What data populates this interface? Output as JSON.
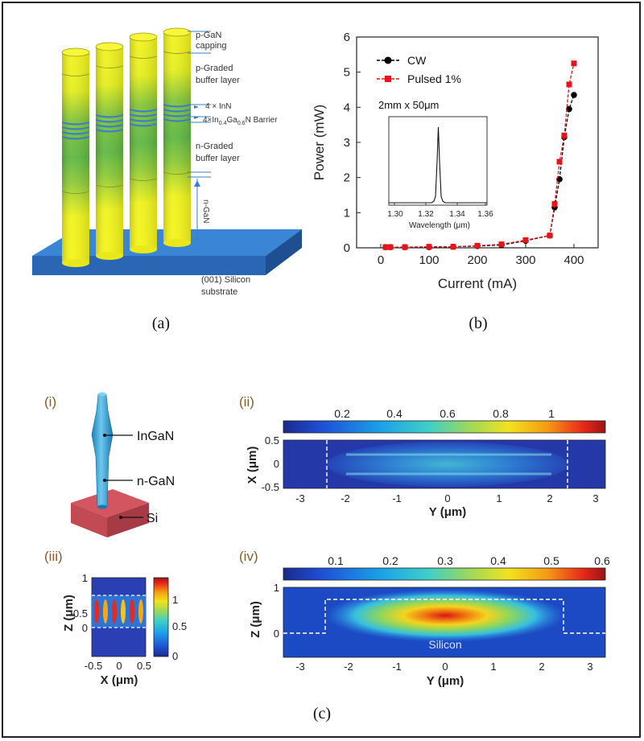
{
  "panel_a": {
    "caption": "(a)",
    "labels": {
      "p_gan_1": "p-GaN",
      "p_gan_2": "capping",
      "p_graded_1": "p-Graded",
      "p_graded_2": "buffer layer",
      "inn": "4 × InN",
      "barrier_pre": "4×In",
      "barrier_sub1": "0.4",
      "barrier_mid": "Ga",
      "barrier_sub2": "0.6",
      "barrier_post": "N Barrier",
      "n_graded_1": "n-Graded",
      "n_graded_2": "buffer layer",
      "n_gan": "n-GaN",
      "substrate_1": "(001) Silicon",
      "substrate_2": "substrate"
    },
    "colors": {
      "rod_yellow": "#f5f51a",
      "rod_green": "#7fc23a",
      "substrate": "#2e74c9",
      "band": "#3a7fc8"
    }
  },
  "panel_b": {
    "caption": "(b)",
    "annotation": "2mm x 50μm",
    "inset_xlabel": "Wavelength (μm)",
    "inset_ticks": [
      "1.30",
      "1.32",
      "1.34",
      "1.36"
    ]
  },
  "panel_c": {
    "caption": "(c)",
    "i": {
      "tag": "(i)",
      "labels": [
        "InGaN",
        "n-GaN",
        "Si"
      ]
    },
    "ii": {
      "tag": "(ii)",
      "colorbar_ticks": [
        "0.2",
        "0.4",
        "0.6",
        "0.8",
        "1"
      ],
      "xlabel": "Y (μm)",
      "ylabel": "X (μm)",
      "y_ticks": [
        "0.5",
        "0",
        "-0.5"
      ],
      "x_ticks": [
        "-3",
        "-2",
        "-1",
        "0",
        "1",
        "2",
        "3"
      ]
    },
    "iii": {
      "tag": "(iii)",
      "xlabel": "X (μm)",
      "ylabel": "Z (μm)",
      "x_ticks": [
        "-0.5",
        "0",
        "0.5"
      ],
      "y_ticks": [
        "1",
        "0.5",
        "0"
      ],
      "colorbar_ticks": [
        "1",
        "0.5",
        "0"
      ]
    },
    "iv": {
      "tag": "(iv)",
      "colorbar_ticks": [
        "0.1",
        "0.2",
        "0.3",
        "0.4",
        "0.5",
        "0.6"
      ],
      "xlabel": "Y (μm)",
      "ylabel": "Z (μm)",
      "y_ticks": [
        "1",
        "0"
      ],
      "x_ticks": [
        "-3",
        "-2",
        "-1",
        "0",
        "1",
        "2",
        "3"
      ],
      "overlay_label": "Silicon"
    }
  },
  "chart_data": {
    "type": "line",
    "xlabel": "Current (mA)",
    "ylabel": "Power (mW)",
    "xlim": [
      -50,
      450
    ],
    "ylim": [
      0,
      6
    ],
    "x_ticks": [
      0,
      100,
      200,
      300,
      400
    ],
    "y_ticks": [
      0,
      1,
      2,
      3,
      4,
      5,
      6
    ],
    "legend_position": "top-left",
    "series": [
      {
        "name": "CW",
        "color": "#000000",
        "marker": "circle",
        "x": [
          10,
          20,
          50,
          100,
          150,
          200,
          250,
          300,
          350,
          360,
          370,
          380,
          390,
          400
        ],
        "y": [
          0.02,
          0.02,
          0.02,
          0.02,
          0.03,
          0.05,
          0.08,
          0.2,
          0.35,
          1.15,
          1.95,
          3.15,
          3.95,
          4.35
        ]
      },
      {
        "name": "Pulsed 1%",
        "color": "#e8141a",
        "marker": "square",
        "x": [
          10,
          20,
          50,
          100,
          150,
          200,
          250,
          300,
          350,
          360,
          370,
          380,
          390,
          400
        ],
        "y": [
          0.02,
          0.02,
          0.02,
          0.03,
          0.03,
          0.06,
          0.1,
          0.22,
          0.35,
          1.25,
          2.45,
          3.2,
          4.65,
          5.25
        ]
      }
    ]
  }
}
